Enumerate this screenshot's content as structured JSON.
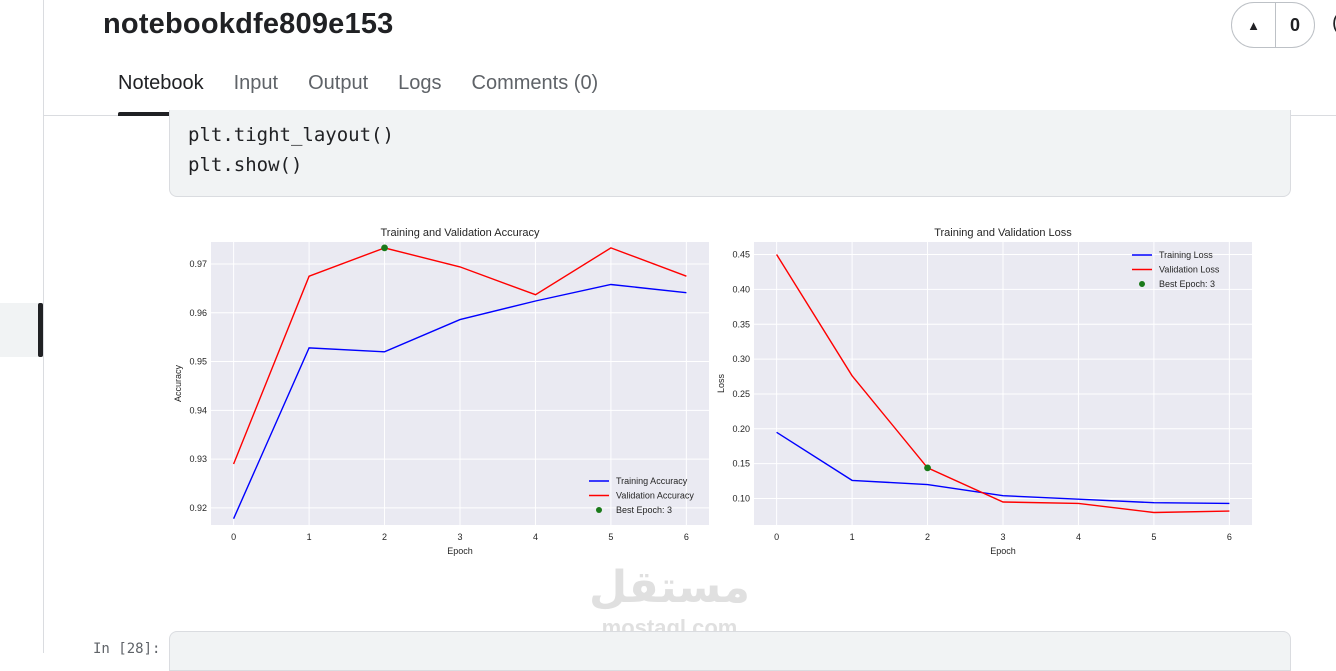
{
  "notebook": {
    "title": "notebookdfe809e153",
    "vote_count": "0",
    "vote_edge": "(",
    "tabs": [
      {
        "label": "Notebook",
        "active": true
      },
      {
        "label": "Input",
        "active": false
      },
      {
        "label": "Output",
        "active": false
      },
      {
        "label": "Logs",
        "active": false
      },
      {
        "label": "Comments (0)",
        "active": false
      }
    ]
  },
  "code_cell": {
    "lines": [
      "plt.tight_layout()",
      "plt.show()"
    ]
  },
  "next_cell": {
    "prompt": "In [28]:"
  },
  "watermark": {
    "main": "مستقل",
    "sub": "mostaql.com"
  },
  "icons": {
    "upvote": "caret-up-icon"
  },
  "colors": {
    "training": "#0000ff",
    "validation": "#ff0000",
    "best": "#1a7a1a",
    "plot_bg": "#eaeaf2"
  },
  "chart_data": [
    {
      "type": "line",
      "title": "Training and Validation Accuracy",
      "xlabel": "Epoch",
      "ylabel": "Accuracy",
      "x": [
        0,
        1,
        2,
        3,
        4,
        5,
        6
      ],
      "xticks": [
        "0",
        "1",
        "2",
        "3",
        "4",
        "5",
        "6"
      ],
      "yticks": [
        "0.92",
        "0.93",
        "0.94",
        "0.95",
        "0.96",
        "0.97"
      ],
      "xlim": [
        -0.3,
        6.3
      ],
      "ylim": [
        0.9165,
        0.9745
      ],
      "grid": true,
      "legend_position": "bottom-right",
      "series": [
        {
          "name": "Training Accuracy",
          "color": "#0000ff",
          "values": [
            0.9178,
            0.9528,
            0.952,
            0.9586,
            0.9624,
            0.9658,
            0.9641
          ]
        },
        {
          "name": "Validation Accuracy",
          "color": "#ff0000",
          "values": [
            0.929,
            0.9675,
            0.9733,
            0.9694,
            0.9637,
            0.9733,
            0.9675
          ]
        }
      ],
      "best_point": {
        "name": "Best Epoch: 3",
        "x": 2,
        "y": 0.9733,
        "color": "#1a7a1a"
      }
    },
    {
      "type": "line",
      "title": "Training and Validation Loss",
      "xlabel": "Epoch",
      "ylabel": "Loss",
      "x": [
        0,
        1,
        2,
        3,
        4,
        5,
        6
      ],
      "xticks": [
        "0",
        "1",
        "2",
        "3",
        "4",
        "5",
        "6"
      ],
      "yticks": [
        "0.10",
        "0.15",
        "0.20",
        "0.25",
        "0.30",
        "0.35",
        "0.40",
        "0.45"
      ],
      "xlim": [
        -0.3,
        6.3
      ],
      "ylim": [
        0.062,
        0.468
      ],
      "grid": true,
      "legend_position": "top-right",
      "series": [
        {
          "name": "Training Loss",
          "color": "#0000ff",
          "values": [
            0.195,
            0.126,
            0.12,
            0.104,
            0.099,
            0.094,
            0.093
          ]
        },
        {
          "name": "Validation Loss",
          "color": "#ff0000",
          "values": [
            0.45,
            0.276,
            0.144,
            0.095,
            0.093,
            0.08,
            0.082
          ]
        }
      ],
      "best_point": {
        "name": "Best Epoch: 3",
        "x": 2,
        "y": 0.144,
        "color": "#1a7a1a"
      }
    }
  ]
}
